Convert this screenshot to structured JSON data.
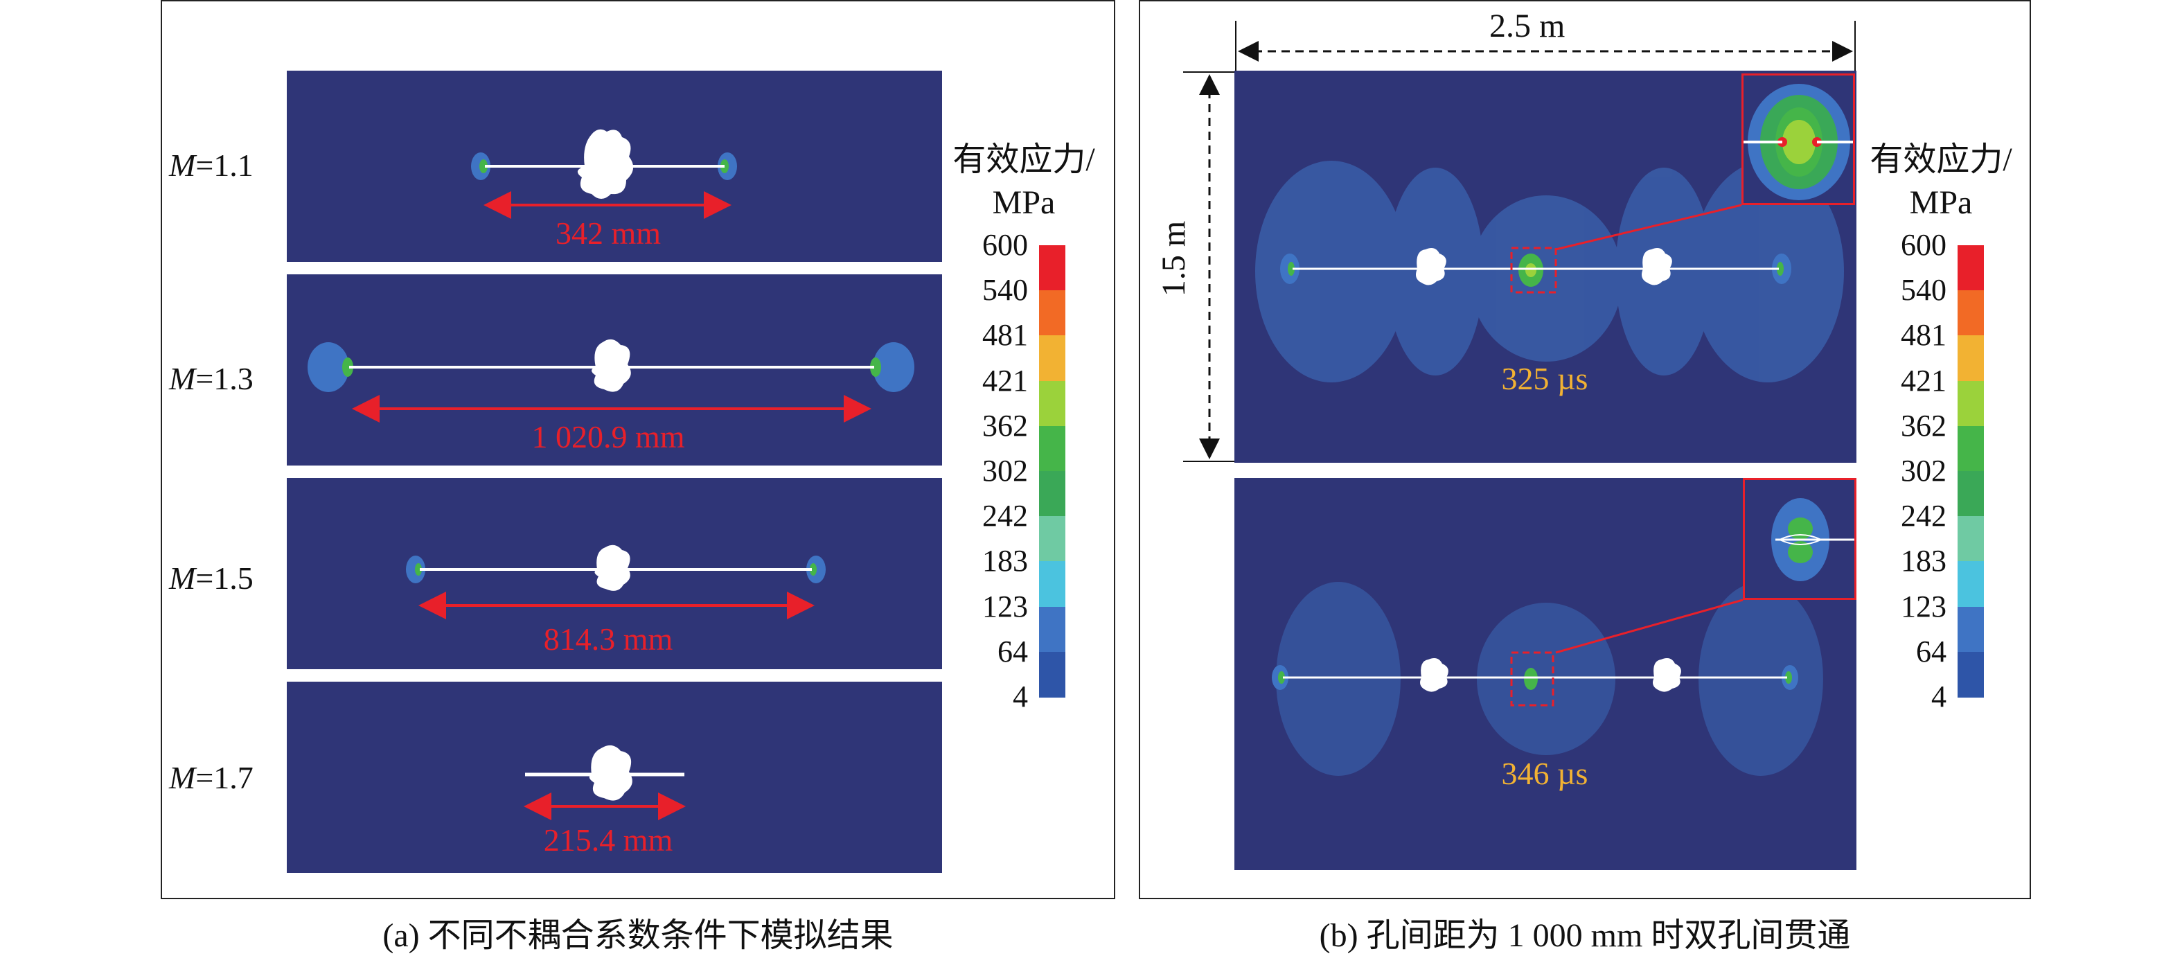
{
  "panel_a": {
    "caption": "(a) 不同不耦合系数条件下模拟结果",
    "rows": [
      {
        "m_symbol": "M",
        "m_value": "=1.1",
        "length": "342 mm"
      },
      {
        "m_symbol": "M",
        "m_value": "=1.3",
        "length": "1 020.9 mm"
      },
      {
        "m_symbol": "M",
        "m_value": "=1.5",
        "length": "814.3 mm"
      },
      {
        "m_symbol": "M",
        "m_value": "=1.7",
        "length": "215.4 mm"
      }
    ]
  },
  "panel_b": {
    "caption": "(b) 孔间距为 1 000 mm 时双孔间贯通",
    "width_label": "2.5 m",
    "height_label": "1.5 m",
    "times": [
      "325 µs",
      "346 µs"
    ]
  },
  "legend": {
    "title_line1": "有效应力/",
    "title_line2": "MPa",
    "ticks": [
      "600",
      "540",
      "481",
      "421",
      "362",
      "302",
      "242",
      "183",
      "123",
      "64",
      "4"
    ],
    "colors": [
      "#e8202a",
      "#f26a25",
      "#f2b233",
      "#e8e030",
      "#9bd23b",
      "#45b549",
      "#3aa857",
      "#6fcaa3",
      "#4bc3df",
      "#3f74c4",
      "#2e55a8"
    ]
  },
  "colors": {
    "background_field": "#2f3577",
    "crack": "#ffffff",
    "measure": "#e8202a",
    "time_text": "#f2b233"
  }
}
